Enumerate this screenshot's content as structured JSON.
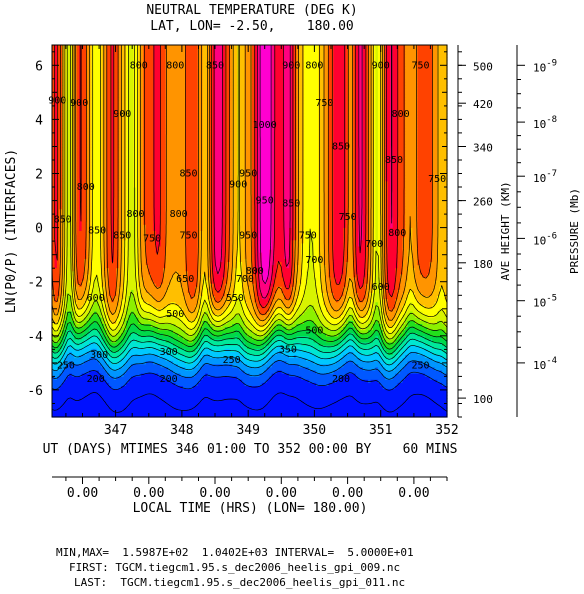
{
  "chart_data": {
    "type": "heatmap",
    "title": "NEUTRAL TEMPERATURE (DEG K)",
    "subtitle": "LAT, LON= -2.50,    180.00",
    "ylabel": "LN(P0/P) (INTERFACES)",
    "xlabel": "UT (DAYS) MTIMES 346 01:00 TO 352 00:00 BY    60 MINS",
    "xlim": [
      346.04,
      352.0
    ],
    "ylim": [
      -7,
      6.75
    ],
    "x_ticks": [
      "347",
      "348",
      "349",
      "350",
      "351",
      "352"
    ],
    "x_tick_values": [
      347,
      348,
      349,
      350,
      351,
      352
    ],
    "y_ticks": [
      "6",
      "4",
      "2",
      "0",
      "-2",
      "-4",
      "-6"
    ],
    "y_tick_values": [
      6,
      4,
      2,
      0,
      -2,
      -4,
      -6
    ],
    "height_axis": {
      "label": "AVE HEIGHT (KM)",
      "ticks": [
        {
          "label": "500",
          "zp": 6.0
        },
        {
          "label": "420",
          "zp": 4.6
        },
        {
          "label": "340",
          "zp": 3.0
        },
        {
          "label": "260",
          "zp": 1.0
        },
        {
          "label": "180",
          "zp": -1.3
        },
        {
          "label": "100",
          "zp": -6.3
        }
      ]
    },
    "pressure_axis": {
      "label": "PRESSURE (Mb)",
      "ticks": [
        {
          "base": "10",
          "exp": "-9",
          "zp": 6.0
        },
        {
          "base": "10",
          "exp": "-8",
          "zp": 3.9
        },
        {
          "base": "10",
          "exp": "-7",
          "zp": 1.9
        },
        {
          "base": "10",
          "exp": "-6",
          "zp": -0.4
        },
        {
          "base": "10",
          "exp": "-5",
          "zp": -2.7
        },
        {
          "base": "10",
          "exp": "-4",
          "zp": -5.0
        }
      ]
    },
    "local_time_axis": {
      "label": "LOCAL TIME (HRS) (LON= 180.00)",
      "ticks": [
        "0.00",
        "0.00",
        "0.00",
        "0.00",
        "0.00",
        "0.00"
      ],
      "tick_values": [
        346.5,
        347.5,
        348.5,
        349.5,
        350.5,
        351.5
      ]
    },
    "contour_interval": 50,
    "levels": [
      200,
      250,
      300,
      350,
      400,
      450,
      500,
      550,
      600,
      650,
      700,
      750,
      800,
      850,
      900,
      950,
      1000
    ],
    "level_colors": [
      "#0018ff",
      "#0058ff",
      "#0096ff",
      "#00c8ff",
      "#00e6d2",
      "#00e89a",
      "#00d84a",
      "#22e01c",
      "#8cf000",
      "#d8f400",
      "#ffff00",
      "#ffbf00",
      "#ff9400",
      "#ff4200",
      "#ff0030",
      "#ff0080",
      "#ff00d0"
    ],
    "min": 159.87,
    "max": 1040.2,
    "contour_labels": [
      {
        "text": "900",
        "x": 346.12,
        "y": 4.7
      },
      {
        "text": "900",
        "x": 346.45,
        "y": 4.6
      },
      {
        "text": "800",
        "x": 346.55,
        "y": 1.5
      },
      {
        "text": "850",
        "x": 346.2,
        "y": 0.3
      },
      {
        "text": "850",
        "x": 346.72,
        "y": -0.1
      },
      {
        "text": "900",
        "x": 347.1,
        "y": 4.2
      },
      {
        "text": "800",
        "x": 347.35,
        "y": 6.0
      },
      {
        "text": "800",
        "x": 347.3,
        "y": 0.5
      },
      {
        "text": "750",
        "x": 347.55,
        "y": -0.4
      },
      {
        "text": "850",
        "x": 347.1,
        "y": -0.3
      },
      {
        "text": "800",
        "x": 347.9,
        "y": 6.0
      },
      {
        "text": "800",
        "x": 347.95,
        "y": 0.5
      },
      {
        "text": "850",
        "x": 348.5,
        "y": 6.0
      },
      {
        "text": "850",
        "x": 348.1,
        "y": 2.0
      },
      {
        "text": "900",
        "x": 348.85,
        "y": 1.6
      },
      {
        "text": "1000",
        "x": 349.25,
        "y": 3.8
      },
      {
        "text": "950",
        "x": 349.0,
        "y": 2.0
      },
      {
        "text": "950",
        "x": 349.25,
        "y": 1.0
      },
      {
        "text": "950",
        "x": 349.0,
        "y": -0.3
      },
      {
        "text": "800",
        "x": 349.1,
        "y": -1.6
      },
      {
        "text": "700",
        "x": 348.95,
        "y": -1.9
      },
      {
        "text": "900",
        "x": 349.65,
        "y": 6.0
      },
      {
        "text": "800",
        "x": 350.0,
        "y": 6.0
      },
      {
        "text": "850",
        "x": 349.65,
        "y": 0.9
      },
      {
        "text": "750",
        "x": 350.15,
        "y": 4.6
      },
      {
        "text": "750",
        "x": 349.9,
        "y": -0.3
      },
      {
        "text": "850",
        "x": 350.4,
        "y": 3.0
      },
      {
        "text": "750",
        "x": 350.5,
        "y": 0.4
      },
      {
        "text": "900",
        "x": 351.0,
        "y": 6.0
      },
      {
        "text": "800",
        "x": 351.3,
        "y": 4.2
      },
      {
        "text": "750",
        "x": 351.6,
        "y": 6.0
      },
      {
        "text": "850",
        "x": 351.2,
        "y": 2.5
      },
      {
        "text": "750",
        "x": 351.85,
        "y": 1.8
      },
      {
        "text": "800",
        "x": 351.25,
        "y": -0.2
      },
      {
        "text": "700",
        "x": 350.9,
        "y": -0.6
      },
      {
        "text": "750",
        "x": 348.1,
        "y": -0.3
      },
      {
        "text": "700",
        "x": 350.0,
        "y": -1.2
      },
      {
        "text": "650",
        "x": 348.05,
        "y": -1.9
      },
      {
        "text": "600",
        "x": 346.7,
        "y": -2.6
      },
      {
        "text": "600",
        "x": 351.0,
        "y": -2.2
      },
      {
        "text": "550",
        "x": 348.8,
        "y": -2.6
      },
      {
        "text": "500",
        "x": 347.9,
        "y": -3.2
      },
      {
        "text": "500",
        "x": 350.0,
        "y": -3.8
      },
      {
        "text": "350",
        "x": 349.6,
        "y": -4.5
      },
      {
        "text": "300",
        "x": 346.75,
        "y": -4.7
      },
      {
        "text": "300",
        "x": 347.8,
        "y": -4.6
      },
      {
        "text": "250",
        "x": 346.25,
        "y": -5.1
      },
      {
        "text": "250",
        "x": 348.75,
        "y": -4.9
      },
      {
        "text": "250",
        "x": 351.6,
        "y": -5.1
      },
      {
        "text": "200",
        "x": 346.7,
        "y": -5.6
      },
      {
        "text": "200",
        "x": 347.8,
        "y": -5.6
      },
      {
        "text": "200",
        "x": 350.4,
        "y": -5.6
      }
    ]
  },
  "footer": {
    "minmax": "MIN,MAX=  1.5987E+02  1.0402E+03 INTERVAL=  5.0000E+01",
    "first": "FIRST: TGCM.tiegcm1.95.s_dec2006_heelis_gpi_009.nc",
    "last": "LAST:  TGCM.tiegcm1.95.s_dec2006_heelis_gpi_011.nc"
  }
}
